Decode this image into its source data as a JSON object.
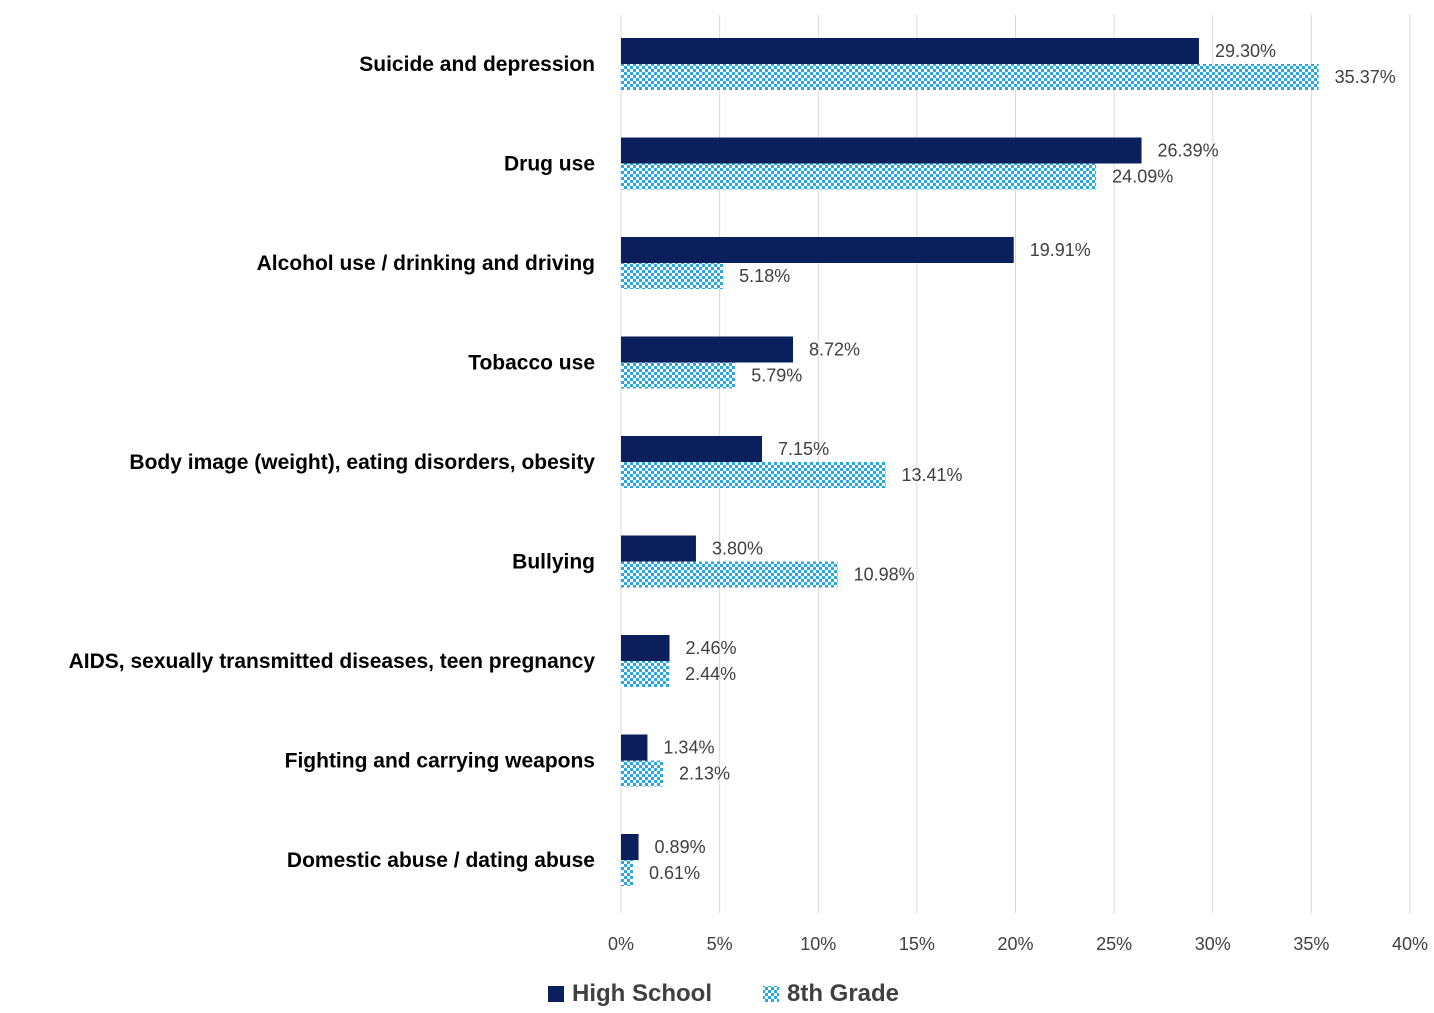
{
  "chart_data": {
    "type": "bar",
    "orientation": "horizontal",
    "categories": [
      "Suicide and depression",
      "Drug use",
      "Alcohol use / drinking and driving",
      "Tobacco use",
      "Body image (weight), eating disorders, obesity",
      "Bullying",
      "AIDS, sexually transmitted diseases, teen pregnancy",
      "Fighting and carrying weapons",
      "Domestic abuse / dating abuse"
    ],
    "series": [
      {
        "name": "High School",
        "color": "#0b1f5c",
        "pattern": "solid",
        "values": [
          29.3,
          26.39,
          19.91,
          8.72,
          7.15,
          3.8,
          2.46,
          1.34,
          0.89
        ],
        "labels": [
          "29.30%",
          "26.39%",
          "19.91%",
          "8.72%",
          "7.15%",
          "3.80%",
          "2.46%",
          "1.34%",
          "0.89%"
        ]
      },
      {
        "name": "8th Grade",
        "color": "#29a8e0",
        "pattern": "checkerboard",
        "values": [
          35.37,
          24.09,
          5.18,
          5.79,
          13.41,
          10.98,
          2.44,
          2.13,
          0.61
        ],
        "labels": [
          "35.37%",
          "24.09%",
          "5.18%",
          "5.79%",
          "13.41%",
          "10.98%",
          "2.44%",
          "2.13%",
          "0.61%"
        ]
      }
    ],
    "x_ticks": [
      "0%",
      "5%",
      "10%",
      "15%",
      "20%",
      "25%",
      "30%",
      "35%",
      "40%"
    ],
    "xlim": [
      0,
      40
    ],
    "title": "",
    "xlabel": "",
    "ylabel": "",
    "grid": "vertical",
    "legend_position": "bottom"
  }
}
